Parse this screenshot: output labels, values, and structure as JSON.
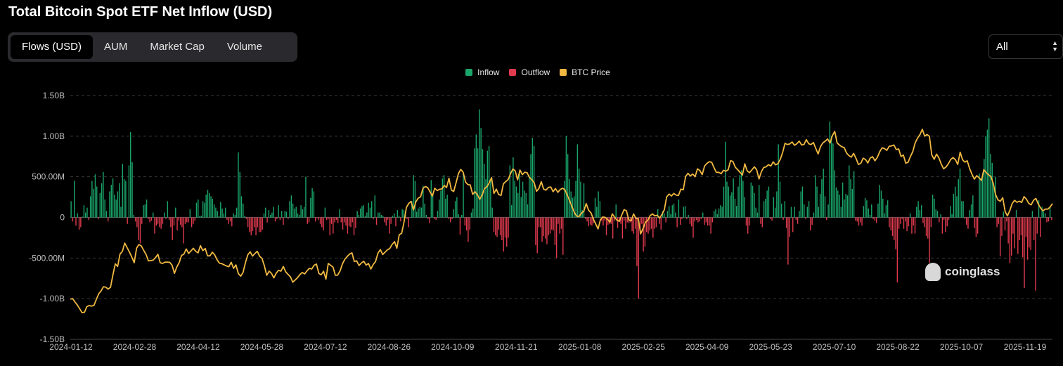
{
  "header": {
    "title": "Total Bitcoin Spot ETF Net Inflow (USD)"
  },
  "tabs": [
    {
      "label": "Flows (USD)",
      "active": true
    },
    {
      "label": "AUM",
      "active": false
    },
    {
      "label": "Market Cap",
      "active": false
    },
    {
      "label": "Volume",
      "active": false
    }
  ],
  "range_select": {
    "value": "All"
  },
  "watermark": {
    "text": "coinglass"
  },
  "colors": {
    "inflow": "#1aa56a",
    "outflow": "#e03b4e",
    "btc_price": "#f1b941"
  },
  "chart_data": {
    "type": "bar",
    "title": "Total Bitcoin Spot ETF Net Inflow (USD)",
    "legend": [
      "Inflow",
      "Outflow",
      "BTC Price"
    ],
    "legend_position": "top",
    "ylim": [
      -1500000000,
      1500000000
    ],
    "yticks": [
      {
        "value": 1500000000,
        "label": "1.50B"
      },
      {
        "value": 1000000000,
        "label": "1.00B"
      },
      {
        "value": 500000000,
        "label": "500.00M"
      },
      {
        "value": 0,
        "label": "0"
      },
      {
        "value": -500000000,
        "label": "-500.00M"
      },
      {
        "value": -1000000000,
        "label": "-1.00B"
      },
      {
        "value": -1500000000,
        "label": "-1.50B"
      }
    ],
    "xticks": [
      "2024-01-12",
      "2024-02-28",
      "2024-04-12",
      "2024-05-28",
      "2024-07-12",
      "2024-08-26",
      "2024-10-09",
      "2024-11-21",
      "2025-01-08",
      "2025-02-25",
      "2025-04-09",
      "2025-05-23",
      "2025-07-10",
      "2025-08-22",
      "2025-10-07",
      "2025-11-19"
    ],
    "grid": true,
    "net_flow_usd_millions": [
      200,
      -50,
      450,
      -100,
      50,
      -150,
      -120,
      10,
      150,
      60,
      120,
      -30,
      260,
      450,
      350,
      530,
      380,
      -20,
      300,
      420,
      560,
      220,
      80,
      -50,
      320,
      400,
      480,
      280,
      220,
      320,
      420,
      130,
      660,
      470,
      450,
      -80,
      640,
      1050,
      680,
      30,
      -50,
      -120,
      -280,
      -320,
      -80,
      150,
      160,
      220,
      -20,
      -60,
      -40,
      60,
      -200,
      -100,
      -80,
      -120,
      -140,
      -80,
      60,
      -20,
      200,
      -30,
      -120,
      -280,
      -100,
      120,
      -160,
      -40,
      -90,
      -120,
      -320,
      -80,
      -60,
      -60,
      100,
      -120,
      -80,
      -40,
      180,
      220,
      20,
      20,
      200,
      180,
      280,
      340,
      300,
      260,
      230,
      160,
      120,
      80,
      20,
      190,
      110,
      50,
      120,
      -30,
      -80,
      -50,
      -110,
      50,
      30,
      120,
      800,
      560,
      260,
      170,
      20,
      -20,
      -120,
      -180,
      -220,
      -170,
      -120,
      -220,
      -120,
      -180,
      -180,
      -150,
      50,
      120,
      -60,
      90,
      30,
      60,
      130,
      -50,
      -20,
      150,
      -30,
      80,
      -90,
      80,
      70,
      -20,
      200,
      270,
      170,
      110,
      130,
      50,
      30,
      150,
      100,
      130,
      500,
      -80,
      -60,
      240,
      360,
      320,
      -50,
      -10,
      -30,
      -80,
      -120,
      -160,
      120,
      -30,
      -20,
      -220,
      -80,
      -200,
      -60,
      -30,
      -70,
      100,
      -60,
      -150,
      -60,
      -100,
      -200,
      -110,
      -120,
      -60,
      -220,
      -130,
      80,
      30,
      110,
      140,
      150,
      20,
      60,
      180,
      120,
      200,
      -20,
      270,
      -90,
      60,
      60,
      30,
      20,
      -60,
      -100,
      -30,
      -200,
      -80,
      20,
      50,
      -110,
      90,
      20,
      -50,
      100,
      90,
      30,
      -20,
      -120,
      0,
      200,
      520,
      450,
      70,
      110,
      130,
      120,
      390,
      170,
      30,
      -20,
      -70,
      460,
      300,
      -20,
      -30,
      80,
      220,
      330,
      480,
      520,
      230,
      280,
      -20,
      -60,
      -20,
      100,
      200,
      250,
      40,
      -210,
      30,
      550,
      -100,
      -160,
      -300,
      -150,
      60,
      110,
      850,
      1020,
      850,
      1330,
      1100,
      840,
      660,
      470,
      820,
      880,
      450,
      120,
      -180,
      -220,
      -240,
      -150,
      -220,
      -280,
      -420,
      -250,
      -360,
      -250,
      640,
      150,
      740,
      450,
      380,
      300,
      560,
      250,
      440,
      330,
      300,
      160,
      520,
      780,
      980,
      880,
      -340,
      -440,
      -120,
      -120,
      -300,
      -230,
      -260,
      -330,
      -220,
      -200,
      -150,
      -160,
      -340,
      -500,
      -80,
      -200,
      -140,
      -460,
      450,
      1000,
      780,
      470,
      320,
      240,
      260,
      450,
      900,
      600,
      440,
      90,
      420,
      -20,
      -50,
      -110,
      -90,
      -100,
      -70,
      240,
      130,
      320,
      200,
      -40,
      -100,
      -40,
      -220,
      -90,
      -80,
      -80,
      -260,
      -40,
      160,
      -130,
      -60,
      -80,
      -260,
      -40,
      -140,
      -60,
      -70,
      -60,
      -170,
      -200,
      -140,
      -600,
      -1000,
      -200,
      -80,
      -420,
      -360,
      -180,
      -200,
      -160,
      -140,
      -250,
      -140,
      -120,
      100,
      -80,
      -150,
      80,
      50,
      -60,
      80,
      140,
      40,
      150,
      170,
      60,
      -120,
      220,
      -90,
      -20,
      130,
      140,
      -20,
      30,
      -80,
      -110,
      -250,
      -50,
      -30,
      -60,
      -50,
      -20,
      60,
      -90,
      -60,
      -100,
      -100,
      -200,
      -60,
      80,
      100,
      40,
      110,
      150,
      130,
      380,
      930,
      440,
      380,
      270,
      310,
      480,
      230,
      140,
      380,
      520,
      580,
      450,
      250,
      -100,
      -200,
      -100,
      430,
      390,
      300,
      120,
      60,
      400,
      -80,
      -120,
      200,
      230,
      330,
      380,
      -20,
      -40,
      250,
      120,
      320,
      900,
      440,
      170,
      -30,
      200,
      -130,
      -580,
      -240,
      130,
      -180,
      130,
      -30,
      -80,
      80,
      320,
      380,
      160,
      -20,
      130,
      200,
      -160,
      -90,
      60,
      520,
      380,
      130,
      290,
      470,
      600,
      260,
      -30,
      160,
      1180,
      1000,
      910,
      580,
      370,
      330,
      280,
      130,
      430,
      220,
      290,
      270,
      640,
      470,
      350,
      570,
      -40,
      -50,
      -100,
      -60,
      -100,
      140,
      240,
      210,
      110,
      30,
      160,
      -20,
      -40,
      -70,
      170,
      400,
      330,
      230,
      50,
      150,
      210,
      -120,
      -160,
      -230,
      -280,
      -390,
      -800,
      -140,
      -80,
      -20,
      -140,
      -50,
      -170,
      -110,
      50,
      -200,
      -100,
      -200,
      130,
      200,
      90,
      150,
      -70,
      -120,
      -230,
      -260,
      -560,
      -120,
      280,
      230,
      100,
      80,
      -60,
      40,
      -200,
      -30,
      -180,
      -110,
      -30,
      140,
      40,
      290,
      380,
      260,
      470,
      600,
      200,
      200,
      -20,
      -90,
      -140,
      90,
      160,
      270,
      -130,
      -240,
      -200,
      540,
      480,
      520,
      720,
      1000,
      1080,
      1220,
      780,
      670,
      400,
      500,
      -120,
      -80,
      -480,
      -230,
      70,
      -160,
      -50,
      -320,
      -560,
      -470,
      -200,
      -380,
      90,
      -450,
      -280,
      -220,
      -490,
      -870,
      -240,
      -520,
      -370,
      -400,
      80,
      -280,
      -900,
      -200,
      210,
      -240,
      130,
      70,
      50,
      -60,
      -50,
      130,
      -30
    ],
    "btc_price_usd": [
      46100,
      46300,
      44700,
      43300,
      41500,
      39800,
      40000,
      42600,
      43100,
      42800,
      43200,
      45900,
      48500,
      49900,
      51800,
      51600,
      50700,
      51600,
      57300,
      62400,
      61200,
      66900,
      68200,
      72000,
      69900,
      67800,
      65500,
      62900,
      69700,
      71300,
      70700,
      68600,
      66800,
      63800,
      63900,
      64100,
      65300,
      66800,
      62900,
      62600,
      63200,
      63200,
      63100,
      61800,
      58000,
      61000,
      62900,
      66300,
      66900,
      69300,
      67200,
      68400,
      69600,
      68200,
      67500,
      70800,
      68500,
      69500,
      66100,
      66100,
      67800,
      66600,
      64300,
      62700,
      62500,
      61900,
      61400,
      61100,
      63100,
      60300,
      61900,
      57900,
      56700,
      58400,
      62900,
      66600,
      68000,
      66000,
      67200,
      68200,
      65900,
      64900,
      61500,
      57100,
      59000,
      58000,
      55900,
      58100,
      59400,
      59000,
      61200,
      58700,
      57500,
      56400,
      53900,
      54900,
      56000,
      57400,
      58400,
      57700,
      59100,
      60300,
      60000,
      61700,
      62300,
      58000,
      57300,
      59000,
      55300,
      62600,
      61700,
      60900,
      57100,
      57200,
      59200,
      62400,
      64500,
      65800,
      66900,
      67500,
      63500,
      63800,
      61600,
      62800,
      63600,
      61800,
      62600,
      60000,
      62100,
      63500,
      67300,
      69000,
      66700,
      67800,
      68900,
      69500,
      71400,
      72700,
      69600,
      75900,
      76500,
      81600,
      88400,
      90400,
      91300,
      87400,
      91100,
      92800,
      93400,
      97300,
      98200,
      97700,
      95700,
      93800,
      97400,
      96300,
      96900,
      97100,
      98700,
      97700,
      102000,
      96600,
      95900,
      99900,
      104200,
      106100,
      104800,
      100200,
      99100,
      98900,
      94600,
      95800,
      94400,
      92300,
      94200,
      97200,
      98100,
      99900,
      102300,
      95000,
      97000,
      94500,
      94100,
      99400,
      100500,
      101400,
      104100,
      106300,
      105400,
      101300,
      105800,
      103700,
      104800,
      104600,
      102400,
      101400,
      99900,
      96000,
      97300,
      100400,
      97000,
      96500,
      97800,
      98000,
      95800,
      97300,
      95500,
      96800,
      97400,
      96600,
      94200,
      91600,
      88800,
      86100,
      84500,
      84300,
      85900,
      86800,
      90300,
      87200,
      86000,
      83200,
      80900,
      78600,
      82800,
      84100,
      83900,
      83000,
      81700,
      85500,
      84000,
      82600,
      82100,
      84900,
      87500,
      86900,
      82700,
      82400,
      85500,
      83500,
      83100,
      76300,
      78700,
      81600,
      82600,
      84700,
      85500,
      84600,
      84900,
      83600,
      85300,
      87400,
      93400,
      94700,
      93800,
      95000,
      94200,
      94100,
      97000,
      96700,
      102800,
      104300,
      103100,
      104000,
      102700,
      106400,
      105600,
      103700,
      107700,
      108900,
      109700,
      109400,
      106900,
      104700,
      104800,
      104100,
      105700,
      105300,
      106000,
      110200,
      109700,
      107100,
      106000,
      104700,
      103500,
      108700,
      105400,
      104600,
      105900,
      107300,
      106000,
      101700,
      105000,
      107000,
      107300,
      108300,
      107700,
      109600,
      108200,
      108800,
      110800,
      113900,
      118200,
      117600,
      117900,
      118800,
      117300,
      118000,
      119200,
      117400,
      117600,
      119900,
      118000,
      117600,
      118600,
      115800,
      113300,
      116700,
      118400,
      119200,
      120200,
      118300,
      121700,
      123700,
      118400,
      117400,
      116600,
      116200,
      113700,
      112500,
      111800,
      113500,
      111200,
      108400,
      108900,
      111300,
      110700,
      109100,
      111400,
      112000,
      110100,
      111700,
      114300,
      116100,
      115800,
      114900,
      116800,
      117000,
      117400,
      115300,
      115600,
      112100,
      112800,
      109000,
      109400,
      112100,
      114400,
      118500,
      120600,
      122200,
      124700,
      121500,
      122300,
      121400,
      112900,
      110800,
      113200,
      111500,
      108600,
      106400,
      107200,
      108700,
      110700,
      111600,
      110600,
      108400,
      114100,
      110600,
      109500,
      110100,
      106500,
      103900,
      101600,
      103200,
      102300,
      101000,
      106000,
      104700,
      103600,
      102800,
      99600,
      94400,
      92000,
      91400,
      93000,
      86600,
      84600,
      87100,
      90400,
      91800,
      90900,
      91400,
      90800,
      93500,
      92300,
      90400,
      89700,
      91800,
      92700,
      90100,
      88200,
      86900,
      87800,
      87700,
      88700,
      90300
    ]
  }
}
